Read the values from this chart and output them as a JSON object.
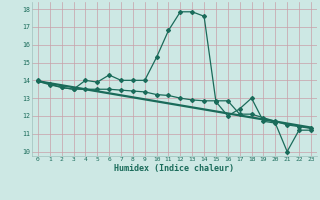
{
  "line1_x": [
    0,
    1,
    2,
    3,
    4,
    5,
    6,
    7,
    8,
    9,
    10,
    11,
    12,
    13,
    14,
    15,
    16,
    17,
    18,
    19,
    20,
    21,
    22,
    23
  ],
  "line1_y": [
    14.0,
    13.8,
    13.6,
    13.5,
    14.0,
    13.9,
    14.3,
    14.0,
    14.0,
    14.0,
    15.3,
    16.8,
    17.85,
    17.85,
    17.6,
    12.8,
    12.0,
    12.4,
    13.0,
    11.7,
    11.6,
    10.0,
    11.2,
    11.2
  ],
  "line2_x": [
    0,
    23
  ],
  "line2_y": [
    13.95,
    11.35
  ],
  "line3_x": [
    0,
    1,
    2,
    3,
    4,
    5,
    6,
    7,
    8,
    9,
    10,
    11,
    12,
    13,
    14,
    15,
    16,
    17,
    18,
    19,
    20,
    21,
    22,
    23
  ],
  "line3_y": [
    13.95,
    13.75,
    13.6,
    13.5,
    13.5,
    13.5,
    13.5,
    13.45,
    13.4,
    13.35,
    13.2,
    13.15,
    13.0,
    12.9,
    12.85,
    12.85,
    12.85,
    12.1,
    12.1,
    11.9,
    11.7,
    11.5,
    11.4,
    11.3
  ],
  "color": "#1a6b5a",
  "bg_color": "#cde8e4",
  "grid_major_color": "#c0d8d4",
  "grid_minor_color": "#dceeed",
  "xlabel": "Humidex (Indice chaleur)",
  "xlim": [
    -0.5,
    23.5
  ],
  "ylim": [
    9.75,
    18.4
  ],
  "yticks": [
    10,
    11,
    12,
    13,
    14,
    15,
    16,
    17,
    18
  ],
  "xticks": [
    0,
    1,
    2,
    3,
    4,
    5,
    6,
    7,
    8,
    9,
    10,
    11,
    12,
    13,
    14,
    15,
    16,
    17,
    18,
    19,
    20,
    21,
    22,
    23
  ],
  "marker": "D",
  "markersize": 2.0,
  "linewidth": 0.9
}
